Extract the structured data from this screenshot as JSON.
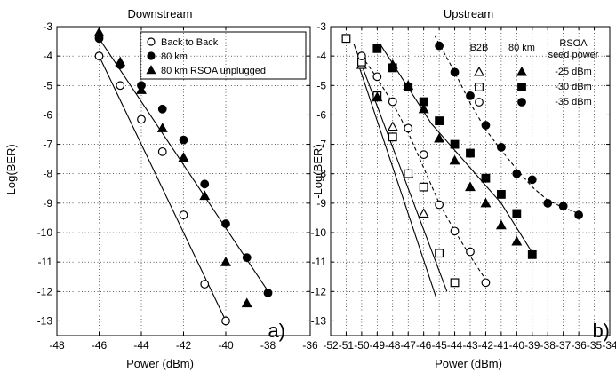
{
  "chart_data": [
    {
      "type": "scatter",
      "title": "Downstream",
      "xlabel": "Power (dBm)",
      "ylabel": "-Log(BER)",
      "xlim": [
        -48,
        -36
      ],
      "ylim": [
        -13.5,
        -3
      ],
      "xticks": [
        "-48",
        "-46",
        "-44",
        "-42",
        "-40",
        "-38",
        "-36"
      ],
      "yticks": [
        "-3",
        "-4",
        "-5",
        "-6",
        "-7",
        "-8",
        "-9",
        "-10",
        "-11",
        "-12",
        "-13"
      ],
      "grid": true,
      "panel_label": "a)",
      "legend_position": "top-right",
      "series": [
        {
          "name": "Back to Back",
          "marker": "open-circle",
          "x": [
            -46,
            -45,
            -44,
            -43,
            -42,
            -41,
            -40
          ],
          "y": [
            -4.0,
            -5.0,
            -6.15,
            -7.25,
            -9.4,
            -11.75,
            -13.0
          ],
          "fit": [
            [
              -46,
              -4.0
            ],
            [
              -40,
              -13.0
            ]
          ]
        },
        {
          "name": "80 km",
          "marker": "filled-circle",
          "x": [
            -46,
            -45,
            -44,
            -43,
            -42,
            -41,
            -40,
            -39,
            -38
          ],
          "y": [
            -3.4,
            -4.3,
            -5.0,
            -5.8,
            -6.85,
            -8.35,
            -9.7,
            -10.85,
            -12.05
          ],
          "fit": [
            [
              -46,
              -3.4
            ],
            [
              -37.9,
              -12.1
            ]
          ]
        },
        {
          "name": "80 km RSOA unplugged",
          "marker": "filled-triangle",
          "x": [
            -46,
            -45,
            -44,
            -43,
            -42,
            -41,
            -40,
            -39
          ],
          "y": [
            -3.2,
            -4.2,
            -5.15,
            -6.45,
            -7.45,
            -8.75,
            -11.0,
            -12.4
          ],
          "fit": null
        }
      ]
    },
    {
      "type": "scatter",
      "title": "Upstream",
      "xlabel": "Power (dBm)",
      "ylabel": "-Log(BER)",
      "xlim": [
        -52,
        -34
      ],
      "ylim": [
        -13.5,
        -3
      ],
      "xticks": [
        "-52",
        "-51",
        "-50",
        "-49",
        "-48",
        "-47",
        "-46",
        "-45",
        "-44",
        "-43",
        "-42",
        "-41",
        "-40",
        "-39",
        "-38",
        "-37",
        "-36",
        "-35",
        "-34"
      ],
      "yticks": [
        "-3",
        "-4",
        "-5",
        "-6",
        "-7",
        "-8",
        "-9",
        "-10",
        "-11",
        "-12",
        "-13"
      ],
      "grid": true,
      "panel_label": "b)",
      "legend_position": "top-right",
      "legend": {
        "heading": [
          "RSOA",
          "seed power"
        ],
        "col_b2b": "B2B",
        "col_80km": "80 km",
        "rows": [
          "-25 dBm",
          "-30 dBm",
          "-35 dBm"
        ]
      },
      "series": [
        {
          "name": "B2B -25 dBm",
          "marker": "open-triangle",
          "x": [
            -50,
            -49,
            -48,
            -47,
            -46
          ],
          "y": [
            -4.3,
            -5.4,
            -6.4,
            -8.0,
            -9.35
          ],
          "fit": {
            "style": "solid",
            "points": [
              [
                -50.2,
                -4.3
              ],
              [
                -45.2,
                -12.2
              ]
            ]
          }
        },
        {
          "name": "B2B -30 dBm",
          "marker": "open-square",
          "x": [
            -51,
            -50,
            -49,
            -48,
            -47,
            -46,
            -45,
            -44
          ],
          "y": [
            -3.4,
            -4.2,
            -5.35,
            -6.75,
            -8.0,
            -8.45,
            -10.7,
            -11.7
          ],
          "fit": {
            "style": "solid",
            "points": [
              [
                -50.5,
                -3.6
              ],
              [
                -44.5,
                -12.0
              ]
            ]
          }
        },
        {
          "name": "B2B -35 dBm",
          "marker": "open-circle",
          "x": [
            -50,
            -49,
            -48,
            -47,
            -46,
            -45,
            -44,
            -43,
            -42
          ],
          "y": [
            -4.0,
            -4.7,
            -5.55,
            -6.45,
            -7.35,
            -9.05,
            -9.95,
            -10.65,
            -11.7
          ],
          "fit": {
            "style": "dashed",
            "points": [
              [
                -50,
                -4.0
              ],
              [
                -49,
                -4.75
              ],
              [
                -48,
                -5.6
              ],
              [
                -47,
                -6.6
              ],
              [
                -46,
                -7.8
              ],
              [
                -45,
                -9.0
              ],
              [
                -44,
                -9.95
              ],
              [
                -43,
                -10.8
              ],
              [
                -42,
                -11.6
              ]
            ]
          }
        },
        {
          "name": "80 km -25 dBm",
          "marker": "filled-triangle",
          "x": [
            -49,
            -48,
            -47,
            -46,
            -45,
            -44,
            -43,
            -42,
            -41,
            -40
          ],
          "y": [
            -5.4,
            -4.3,
            -5.0,
            -5.8,
            -6.8,
            -7.55,
            -8.45,
            -9.0,
            -9.75,
            -10.3
          ],
          "fit": null
        },
        {
          "name": "80 km -30 dBm",
          "marker": "filled-square",
          "x": [
            -49,
            -48,
            -47,
            -46,
            -45,
            -44,
            -43,
            -42,
            -41,
            -40,
            -39
          ],
          "y": [
            -3.75,
            -4.4,
            -5.05,
            -5.55,
            -6.2,
            -7.0,
            -7.3,
            -8.15,
            -8.7,
            -9.35,
            -10.75
          ],
          "fit": {
            "style": "solid",
            "points": [
              [
                -48.8,
                -3.6
              ],
              [
                -45.5,
                -6.3
              ],
              [
                -43,
                -7.8
              ],
              [
                -41,
                -9.0
              ],
              [
                -38.8,
                -10.85
              ]
            ]
          }
        },
        {
          "name": "80 km -35 dBm",
          "marker": "filled-circle",
          "x": [
            -45,
            -44,
            -43,
            -42,
            -41,
            -40,
            -39,
            -38,
            -37,
            -36
          ],
          "y": [
            -3.65,
            -4.55,
            -5.35,
            -6.35,
            -7.1,
            -8.0,
            -8.2,
            -9.0,
            -9.1,
            -9.4
          ],
          "fit": {
            "style": "dashed",
            "points": [
              [
                -45.3,
                -3.3
              ],
              [
                -44,
                -4.55
              ],
              [
                -43,
                -5.6
              ],
              [
                -42,
                -6.5
              ],
              [
                -41,
                -7.2
              ],
              [
                -40,
                -7.85
              ],
              [
                -39,
                -8.45
              ],
              [
                -38,
                -8.9
              ],
              [
                -37,
                -9.15
              ],
              [
                -36,
                -9.35
              ]
            ]
          }
        }
      ]
    }
  ]
}
